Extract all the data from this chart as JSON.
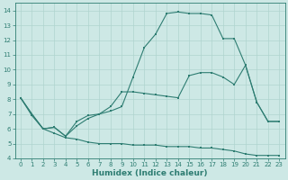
{
  "xlabel": "Humidex (Indice chaleur)",
  "xlim": [
    -0.5,
    23.5
  ],
  "ylim": [
    4,
    14.5
  ],
  "yticks": [
    4,
    5,
    6,
    7,
    8,
    9,
    10,
    11,
    12,
    13,
    14
  ],
  "xticks": [
    0,
    1,
    2,
    3,
    4,
    5,
    6,
    7,
    8,
    9,
    10,
    11,
    12,
    13,
    14,
    15,
    16,
    17,
    18,
    19,
    20,
    21,
    22,
    23
  ],
  "bg_color": "#cde8e5",
  "line_color": "#2e7d72",
  "grid_color": "#afd4cf",
  "line1_y": [
    8.1,
    6.9,
    6.0,
    5.7,
    5.4,
    5.3,
    5.1,
    5.0,
    5.0,
    5.0,
    4.9,
    4.9,
    4.9,
    4.8,
    4.8,
    4.8,
    4.7,
    4.7,
    4.6,
    4.5,
    4.3,
    4.2,
    4.2,
    4.2
  ],
  "line2_y": [
    8.1,
    7.0,
    6.0,
    6.1,
    5.5,
    6.2,
    6.7,
    7.0,
    7.5,
    8.5,
    8.5,
    8.4,
    8.3,
    8.2,
    8.1,
    9.6,
    9.8,
    9.8,
    9.5,
    9.0,
    10.3,
    7.8,
    6.5,
    6.5
  ],
  "line3_y": [
    8.1,
    7.0,
    6.0,
    6.1,
    5.5,
    6.5,
    6.9,
    7.0,
    7.2,
    7.5,
    9.5,
    11.5,
    12.4,
    13.8,
    13.9,
    13.8,
    13.8,
    13.7,
    12.1,
    12.1,
    10.3,
    7.8,
    6.5,
    6.5
  ],
  "tick_fontsize": 5.0,
  "xlabel_fontsize": 6.5,
  "lw": 0.8,
  "ms": 1.8
}
